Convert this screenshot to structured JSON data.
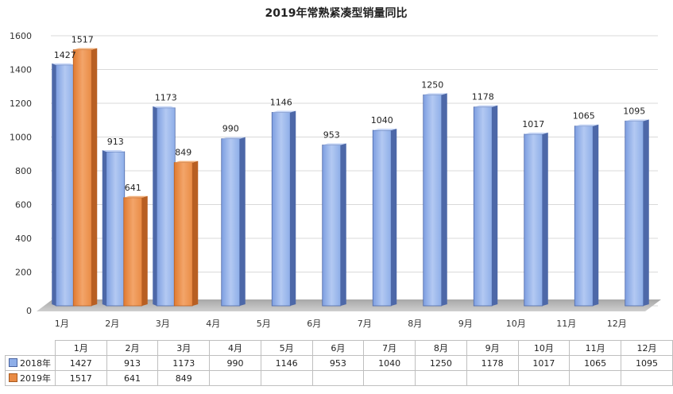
{
  "chart_data": {
    "type": "bar",
    "title": "2019年常熟紧凑型销量同比",
    "categories": [
      "1月",
      "2月",
      "3月",
      "4月",
      "5月",
      "6月",
      "7月",
      "8月",
      "9月",
      "10月",
      "11月",
      "12月"
    ],
    "series": [
      {
        "name": "2018年",
        "color": "#8eaee8",
        "values": [
          1427,
          913,
          1173,
          990,
          1146,
          953,
          1040,
          1250,
          1178,
          1017,
          1065,
          1095
        ]
      },
      {
        "name": "2019年",
        "color": "#e98b44",
        "values": [
          1517,
          641,
          849,
          null,
          null,
          null,
          null,
          null,
          null,
          null,
          null,
          null
        ]
      }
    ],
    "ylim": [
      0,
      1600
    ],
    "yticks": [
      0,
      200,
      400,
      600,
      800,
      1000,
      1200,
      1400,
      1600
    ],
    "xlabel": "",
    "ylabel": "",
    "grid": true,
    "legend": "data-table"
  }
}
